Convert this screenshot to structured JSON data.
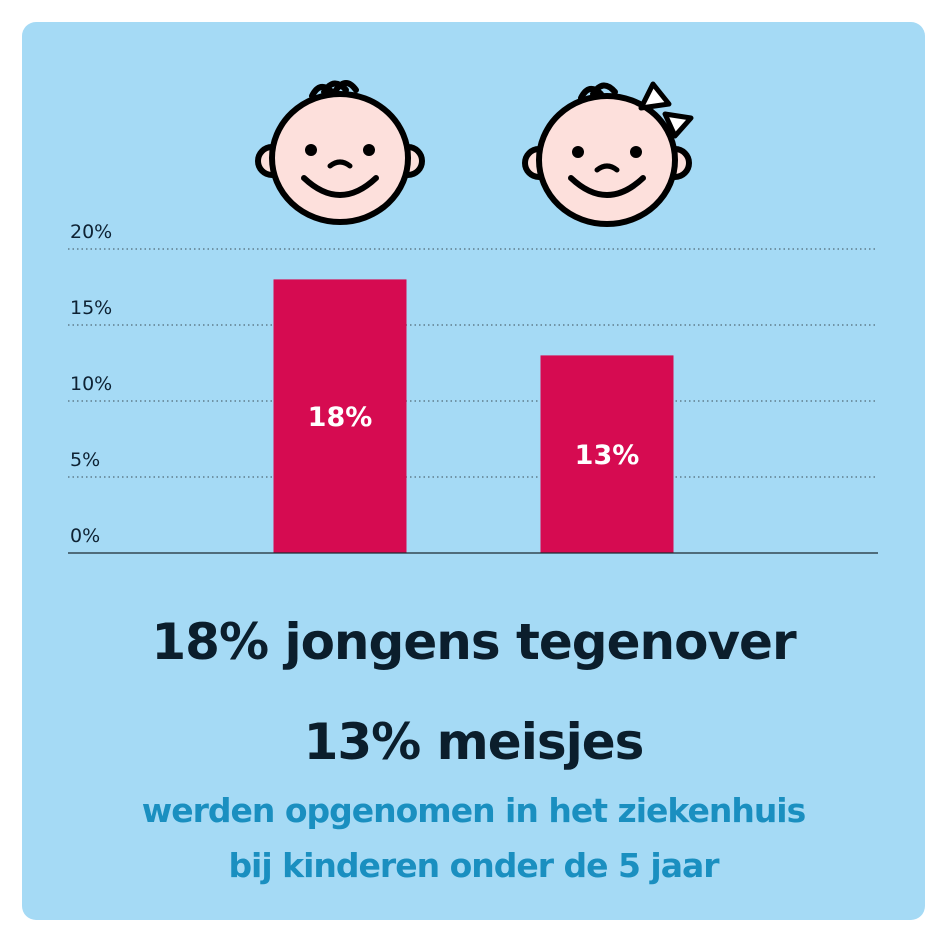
{
  "colors": {
    "background": "#a5daf5",
    "bar": "#d60b51",
    "headline": "#0b1e2c",
    "subline": "#1a8fc0",
    "face": "#fde0dc"
  },
  "icons": [
    "boy-face-icon",
    "girl-face-with-bow-icon"
  ],
  "chart_data": {
    "type": "bar",
    "categories": [
      "",
      ""
    ],
    "values": [
      18,
      13
    ],
    "data_labels": [
      "18%",
      "13%"
    ],
    "ylim": [
      0,
      20
    ],
    "yticks": [
      0,
      5,
      10,
      15,
      20
    ],
    "ytick_labels": [
      "0%",
      "5%",
      "10%",
      "15%",
      "20%"
    ],
    "grid": "dotted horizontal",
    "legend": "none"
  },
  "text": {
    "headline_line1": "18% jongens tegenover",
    "headline_line2": "13% meisjes",
    "subline_line1": "werden opgenomen in het ziekenhuis",
    "subline_line2": "bij kinderen onder de 5 jaar"
  }
}
